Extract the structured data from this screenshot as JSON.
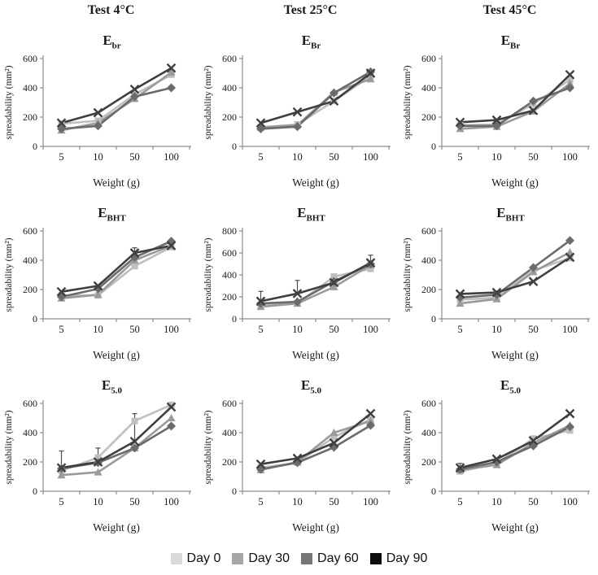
{
  "columns": [
    "Test 4°C",
    "Test 25°C",
    "Test 45°C"
  ],
  "legend": [
    {
      "label": "Day 0",
      "color": "#d9d9d9"
    },
    {
      "label": "Day 30",
      "color": "#a6a6a6"
    },
    {
      "label": "Day 60",
      "color": "#767676"
    },
    {
      "label": "Day 90",
      "color": "#0d0d0d"
    }
  ],
  "series_styles": [
    {
      "name": "Day 0",
      "color": "#bfbfbf",
      "marker": "square"
    },
    {
      "name": "Day 30",
      "color": "#9a9a9a",
      "marker": "triangle"
    },
    {
      "name": "Day 60",
      "color": "#6b6b6b",
      "marker": "diamond"
    },
    {
      "name": "Day 90",
      "color": "#3f3f3f",
      "marker": "x"
    }
  ],
  "chart_data": [
    {
      "type": "line",
      "title_base": "E",
      "title_sub": "br",
      "column": "Test 4°C",
      "xlabel": "Weight (g)",
      "ylabel": "spreadability (mm²)",
      "categories": [
        5,
        10,
        50,
        100
      ],
      "ylim": [
        0,
        600
      ],
      "yticks": [
        0,
        200,
        400,
        600
      ],
      "legend_position": "none",
      "grid": false,
      "series": [
        {
          "name": "Day 0",
          "values": [
            155,
            175,
            355,
            490
          ]
        },
        {
          "name": "Day 30",
          "values": [
            110,
            160,
            325,
            505
          ]
        },
        {
          "name": "Day 60",
          "values": [
            120,
            140,
            340,
            400
          ]
        },
        {
          "name": "Day 90",
          "values": [
            160,
            230,
            390,
            535
          ]
        }
      ],
      "error_bars": []
    },
    {
      "type": "line",
      "title_base": "E",
      "title_sub": "Br",
      "column": "Test 25°C",
      "xlabel": "Weight (g)",
      "ylabel": "spreadability (mm²)",
      "categories": [
        5,
        10,
        50,
        100
      ],
      "ylim": [
        0,
        600
      ],
      "yticks": [
        0,
        200,
        400,
        600
      ],
      "legend_position": "none",
      "grid": false,
      "series": [
        {
          "name": "Day 0",
          "values": [
            130,
            150,
            310,
            480
          ]
        },
        {
          "name": "Day 30",
          "values": [
            130,
            145,
            370,
            460
          ]
        },
        {
          "name": "Day 60",
          "values": [
            120,
            135,
            365,
            510
          ]
        },
        {
          "name": "Day 90",
          "values": [
            160,
            235,
            310,
            500
          ]
        }
      ],
      "error_bars": []
    },
    {
      "type": "line",
      "title_base": "E",
      "title_sub": "Br",
      "column": "Test 45°C",
      "xlabel": "Weight (g)",
      "ylabel": "spreadability (mm²)",
      "categories": [
        5,
        10,
        50,
        100
      ],
      "ylim": [
        0,
        600
      ],
      "yticks": [
        0,
        200,
        400,
        600
      ],
      "legend_position": "none",
      "grid": false,
      "series": [
        {
          "name": "Day 0",
          "values": [
            145,
            150,
            290,
            455
          ]
        },
        {
          "name": "Day 30",
          "values": [
            120,
            135,
            240,
            430
          ]
        },
        {
          "name": "Day 60",
          "values": [
            140,
            140,
            310,
            400
          ]
        },
        {
          "name": "Day 90",
          "values": [
            165,
            180,
            245,
            490
          ]
        }
      ],
      "error_bars": []
    },
    {
      "type": "line",
      "title_base": "E",
      "title_sub": "BHT",
      "column": "Test 4°C",
      "xlabel": "Weight (g)",
      "ylabel": "spreadability (mm²)",
      "categories": [
        5,
        10,
        50,
        100
      ],
      "ylim": [
        0,
        600
      ],
      "yticks": [
        0,
        200,
        400,
        600
      ],
      "legend_position": "none",
      "grid": false,
      "series": [
        {
          "name": "Day 0",
          "values": [
            160,
            160,
            360,
            490
          ]
        },
        {
          "name": "Day 30",
          "values": [
            140,
            165,
            400,
            500
          ]
        },
        {
          "name": "Day 60",
          "values": [
            150,
            205,
            420,
            530
          ]
        },
        {
          "name": "Day 90",
          "values": [
            185,
            225,
            450,
            500
          ]
        }
      ],
      "error_bars": [
        {
          "series": 3,
          "x": 2,
          "plus": 35,
          "minus": 35
        },
        {
          "series": 3,
          "x": 3,
          "plus": 25,
          "minus": 25
        }
      ]
    },
    {
      "type": "line",
      "title_base": "E",
      "title_sub": "BHT",
      "column": "Test 25°C",
      "xlabel": "Weight (g)",
      "ylabel": "spreadability (mm²)",
      "categories": [
        5,
        10,
        50,
        100
      ],
      "ylim": [
        0,
        800
      ],
      "yticks": [
        0,
        200,
        400,
        600,
        800
      ],
      "legend_position": "none",
      "grid": false,
      "series": [
        {
          "name": "Day 0",
          "values": [
            125,
            140,
            385,
            455
          ]
        },
        {
          "name": "Day 30",
          "values": [
            110,
            140,
            290,
            490
          ]
        },
        {
          "name": "Day 60",
          "values": [
            140,
            155,
            340,
            500
          ]
        },
        {
          "name": "Day 90",
          "values": [
            160,
            230,
            330,
            510
          ]
        }
      ],
      "error_bars": [
        {
          "series": 3,
          "x": 0,
          "plus": 90,
          "minus": 0
        },
        {
          "series": 3,
          "x": 1,
          "plus": 120,
          "minus": 0
        },
        {
          "series": 2,
          "x": 3,
          "plus": 80,
          "minus": 0
        }
      ]
    },
    {
      "type": "line",
      "title_base": "E",
      "title_sub": "BHT",
      "column": "Test 45°C",
      "xlabel": "Weight (g)",
      "ylabel": "spreadability (mm²)",
      "categories": [
        5,
        10,
        50,
        100
      ],
      "ylim": [
        0,
        600
      ],
      "yticks": [
        0,
        200,
        400,
        600
      ],
      "legend_position": "none",
      "grid": false,
      "series": [
        {
          "name": "Day 0",
          "values": [
            130,
            145,
            330,
            415
          ]
        },
        {
          "name": "Day 30",
          "values": [
            105,
            135,
            320,
            455
          ]
        },
        {
          "name": "Day 60",
          "values": [
            145,
            165,
            350,
            535
          ]
        },
        {
          "name": "Day 90",
          "values": [
            170,
            180,
            255,
            420
          ]
        }
      ],
      "error_bars": []
    },
    {
      "type": "line",
      "title_base": "E",
      "title_sub": "5.0",
      "column": "Test 4°C",
      "xlabel": "Weight (g)",
      "ylabel": "spreadability (mm²)",
      "categories": [
        5,
        10,
        50,
        100
      ],
      "ylim": [
        0,
        600
      ],
      "yticks": [
        0,
        200,
        400,
        600
      ],
      "legend_position": "none",
      "grid": false,
      "series": [
        {
          "name": "Day 0",
          "values": [
            140,
            230,
            480,
            590
          ]
        },
        {
          "name": "Day 30",
          "values": [
            110,
            130,
            295,
            500
          ]
        },
        {
          "name": "Day 60",
          "values": [
            155,
            195,
            295,
            445
          ]
        },
        {
          "name": "Day 90",
          "values": [
            160,
            200,
            340,
            575
          ]
        }
      ],
      "error_bars": [
        {
          "series": 3,
          "x": 0,
          "plus": 115,
          "minus": 0
        },
        {
          "series": 3,
          "x": 1,
          "plus": 95,
          "minus": 0
        },
        {
          "series": 0,
          "x": 2,
          "plus": 50,
          "minus": 130
        }
      ]
    },
    {
      "type": "line",
      "title_base": "E",
      "title_sub": "5.0",
      "column": "Test 25°C",
      "xlabel": "Weight (g)",
      "ylabel": "spreadability (mm²)",
      "categories": [
        5,
        10,
        50,
        100
      ],
      "ylim": [
        0,
        600
      ],
      "yticks": [
        0,
        200,
        400,
        600
      ],
      "legend_position": "none",
      "grid": false,
      "series": [
        {
          "name": "Day 0",
          "values": [
            160,
            195,
            370,
            490
          ]
        },
        {
          "name": "Day 30",
          "values": [
            145,
            200,
            400,
            480
          ]
        },
        {
          "name": "Day 60",
          "values": [
            150,
            195,
            300,
            450
          ]
        },
        {
          "name": "Day 90",
          "values": [
            185,
            225,
            330,
            530
          ]
        }
      ],
      "error_bars": []
    },
    {
      "type": "line",
      "title_base": "E",
      "title_sub": "5.0",
      "column": "Test 45°C",
      "xlabel": "Weight (g)",
      "ylabel": "spreadability (mm²)",
      "categories": [
        5,
        10,
        50,
        100
      ],
      "ylim": [
        0,
        600
      ],
      "yticks": [
        0,
        200,
        400,
        600
      ],
      "legend_position": "none",
      "grid": false,
      "series": [
        {
          "name": "Day 0",
          "values": [
            135,
            190,
            360,
            415
          ]
        },
        {
          "name": "Day 30",
          "values": [
            145,
            180,
            330,
            450
          ]
        },
        {
          "name": "Day 60",
          "values": [
            150,
            200,
            310,
            440
          ]
        },
        {
          "name": "Day 90",
          "values": [
            160,
            220,
            345,
            530
          ]
        }
      ],
      "error_bars": [
        {
          "series": 3,
          "x": 0,
          "plus": 30,
          "minus": 30
        }
      ]
    }
  ]
}
